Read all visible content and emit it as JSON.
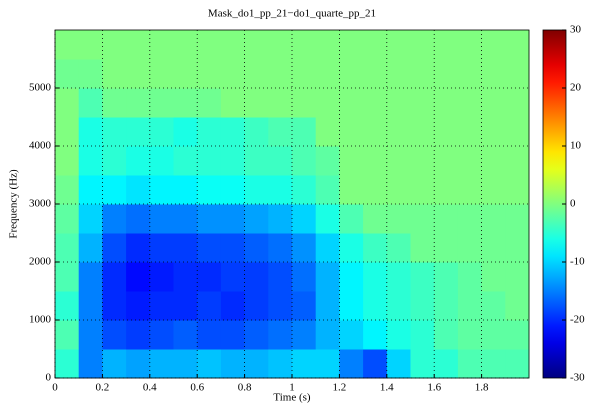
{
  "chart_data": {
    "type": "heatmap",
    "title": "Mask_do1_pp_21−do1_quarte_pp_21",
    "xlabel": "Time (s)",
    "ylabel": "Frequency (Hz)",
    "xlim": [
      0,
      2
    ],
    "xticks": [
      0,
      0.2,
      0.4,
      0.6,
      0.8,
      1,
      1.2,
      1.4,
      1.6,
      1.8
    ],
    "ylim": [
      0,
      6000
    ],
    "yticks": [
      0,
      1000,
      2000,
      3000,
      4000,
      5000
    ],
    "grid": true,
    "colormap": "jet",
    "zlim": [
      -30,
      30
    ],
    "zticks": [
      -30,
      -20,
      -10,
      0,
      10,
      20,
      30
    ],
    "z": [
      [
        -5,
        -15,
        -12,
        -13,
        -12,
        -12,
        -11,
        -12,
        -12,
        -11,
        -10,
        -10,
        -15,
        -18,
        -10,
        -5,
        -5,
        -3,
        -3,
        -3
      ],
      [
        -3,
        -15,
        -18,
        -19,
        -18,
        -17,
        -18,
        -18,
        -17,
        -16,
        -15,
        -12,
        -10,
        -8,
        -6,
        -5,
        -3,
        -2,
        -2,
        -2
      ],
      [
        -5,
        -15,
        -20,
        -21,
        -20,
        -20,
        -19,
        -20,
        -19,
        -18,
        -17,
        -12,
        -8,
        -6,
        -5,
        -4,
        -3,
        -2,
        -2,
        -1
      ],
      [
        -3,
        -15,
        -20,
        -22,
        -21,
        -20,
        -20,
        -19,
        -19,
        -18,
        -16,
        -12,
        -8,
        -6,
        -5,
        -4,
        -3,
        -2,
        -1,
        -1
      ],
      [
        -3,
        -12,
        -18,
        -20,
        -19,
        -19,
        -18,
        -18,
        -17,
        -16,
        -14,
        -10,
        -6,
        -4,
        -3,
        -1,
        -1,
        -1,
        -1,
        -1
      ],
      [
        -2,
        -10,
        -15,
        -16,
        -15,
        -15,
        -14,
        -14,
        -13,
        -12,
        -10,
        -6,
        -3,
        -1,
        -1,
        -1,
        -1,
        -1,
        -1,
        -1
      ],
      [
        -1,
        -8,
        -8,
        -9,
        -8,
        -8,
        -7,
        -7,
        -6,
        -6,
        -5,
        -3,
        0,
        0,
        0,
        0,
        0,
        0,
        0,
        0
      ],
      [
        0,
        -6,
        -5,
        -6,
        -6,
        -5,
        -5,
        -5,
        -4,
        -4,
        -3,
        -2,
        0,
        0,
        0,
        0,
        0,
        0,
        0,
        0
      ],
      [
        0,
        -6,
        -5,
        -5,
        -5,
        -6,
        -5,
        -5,
        -4,
        -3,
        -3,
        0,
        0,
        0,
        0,
        0,
        0,
        0,
        0,
        0
      ],
      [
        0,
        -3,
        -1,
        -1,
        -1,
        -1,
        -1,
        0,
        0,
        0,
        0,
        0,
        0,
        0,
        0,
        0,
        0,
        0,
        0,
        0
      ],
      [
        -1,
        -1,
        0,
        0,
        0,
        0,
        0,
        0,
        0,
        0,
        0,
        0,
        0,
        0,
        0,
        0,
        0,
        0,
        0,
        0
      ],
      [
        0,
        0,
        0,
        0,
        0,
        0,
        0,
        0,
        0,
        0,
        0,
        0,
        0,
        0,
        0,
        0,
        0,
        0,
        0,
        0
      ]
    ]
  }
}
